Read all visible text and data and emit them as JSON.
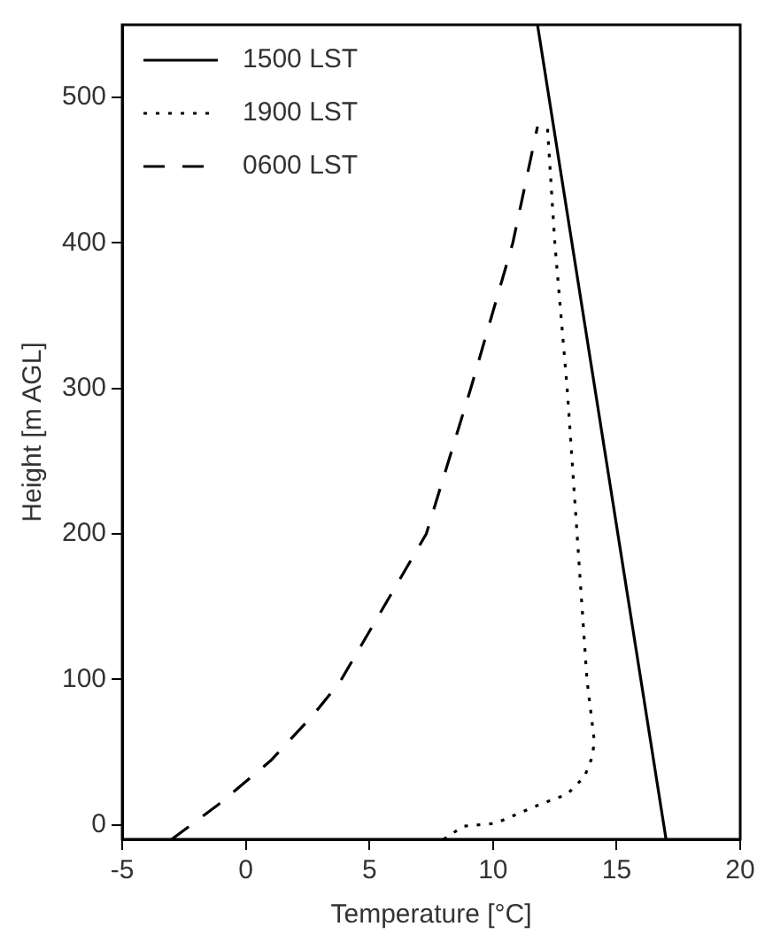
{
  "chart_data": {
    "type": "line",
    "xlabel": "Temperature [°C]",
    "ylabel": "Height [m AGL]",
    "xlim": [
      -5,
      20
    ],
    "xticks": [
      -5,
      0,
      5,
      10,
      15,
      20
    ],
    "ylim": [
      -10,
      550
    ],
    "yticks": [
      0,
      100,
      200,
      300,
      400,
      500
    ],
    "legend": "top left",
    "grid": false,
    "marker": "none",
    "series": [
      {
        "name": "1500 LST",
        "color": "#000000",
        "line_style": "solid",
        "x": [
          17.0,
          11.8
        ],
        "values": [
          -10,
          550
        ]
      },
      {
        "name": "1900 LST",
        "color": "#000000",
        "line_style": "dotted",
        "x": [
          8.0,
          8.8,
          10.1,
          11.9,
          13.0,
          13.7,
          14.0,
          14.1,
          13.8,
          13.4,
          13.0,
          12.5,
          12.2
        ],
        "values": [
          -10,
          -1,
          1,
          14,
          21,
          33,
          46,
          57,
          100,
          200,
          300,
          400,
          480
        ]
      },
      {
        "name": "0600 LST",
        "color": "#000000",
        "line_style": "dashed",
        "x": [
          -3.0,
          -1.1,
          1.0,
          2.7,
          3.8,
          7.3,
          9.1,
          10.8,
          11.8
        ],
        "values": [
          -10,
          14,
          44,
          75,
          98,
          200,
          300,
          400,
          480
        ]
      }
    ]
  }
}
